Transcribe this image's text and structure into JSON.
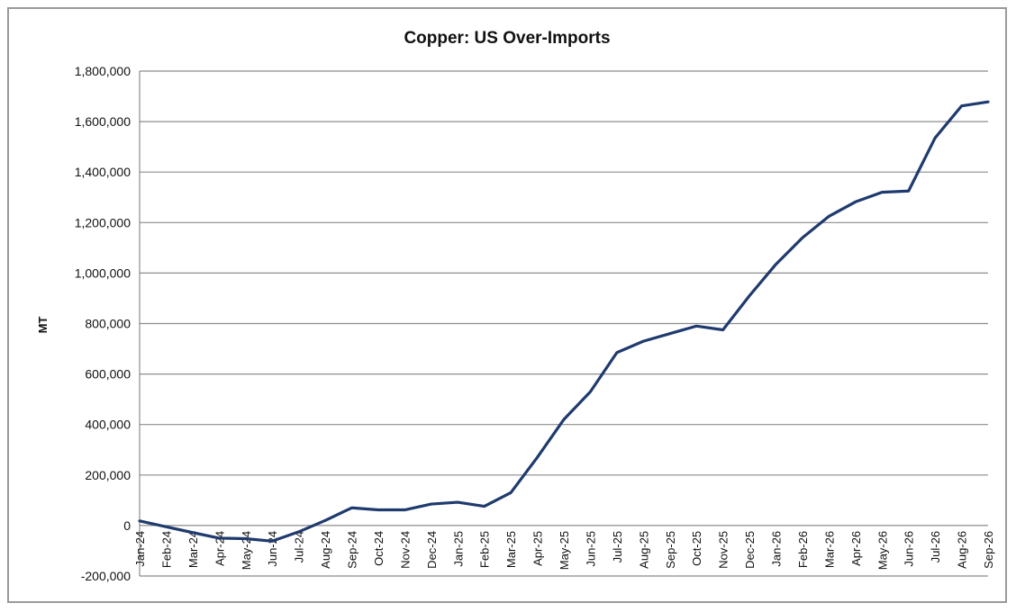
{
  "chart_data": {
    "type": "line",
    "title": "Copper: US Over-Imports",
    "ylabel": "MT",
    "xlabel": "",
    "ylim": [
      -200000,
      1800000
    ],
    "yticks": [
      1800000,
      1600000,
      1400000,
      1200000,
      1000000,
      800000,
      600000,
      400000,
      200000,
      0,
      -200000
    ],
    "ytick_labels": [
      "1,800,000",
      "1,600,000",
      "1,400,000",
      "1,200,000",
      "1,000,000",
      "800,000",
      "600,000",
      "400,000",
      "200,000",
      "0",
      "-200,000"
    ],
    "grid": true,
    "categories": [
      "Jan-24",
      "Feb-24",
      "Mar-24",
      "Apr-24",
      "May-24",
      "Jun-24",
      "Jul-24",
      "Aug-24",
      "Sep-24",
      "Oct-24",
      "Nov-24",
      "Dec-24",
      "Jan-25",
      "Feb-25",
      "Mar-25",
      "Apr-25",
      "May-25",
      "Jun-25",
      "Jul-25",
      "Aug-25",
      "Sep-25",
      "Oct-25",
      "Nov-25",
      "Dec-25",
      "Jan-26",
      "Feb-26",
      "Mar-26",
      "Apr-26",
      "May-26",
      "Jun-26",
      "Jul-26",
      "Aug-26",
      "Sep-26"
    ],
    "series": [
      {
        "color": "#1f3a6e",
        "values": [
          18000,
          -5000,
          -28000,
          -50000,
          -52000,
          -62000,
          -25000,
          20000,
          70000,
          62000,
          62000,
          85000,
          92000,
          76000,
          130000,
          270000,
          420000,
          530000,
          685000,
          730000,
          760000,
          790000,
          775000,
          910000,
          1035000,
          1140000,
          1225000,
          1282000,
          1320000,
          1325000,
          1535000,
          1662000,
          1678000
        ]
      }
    ]
  }
}
